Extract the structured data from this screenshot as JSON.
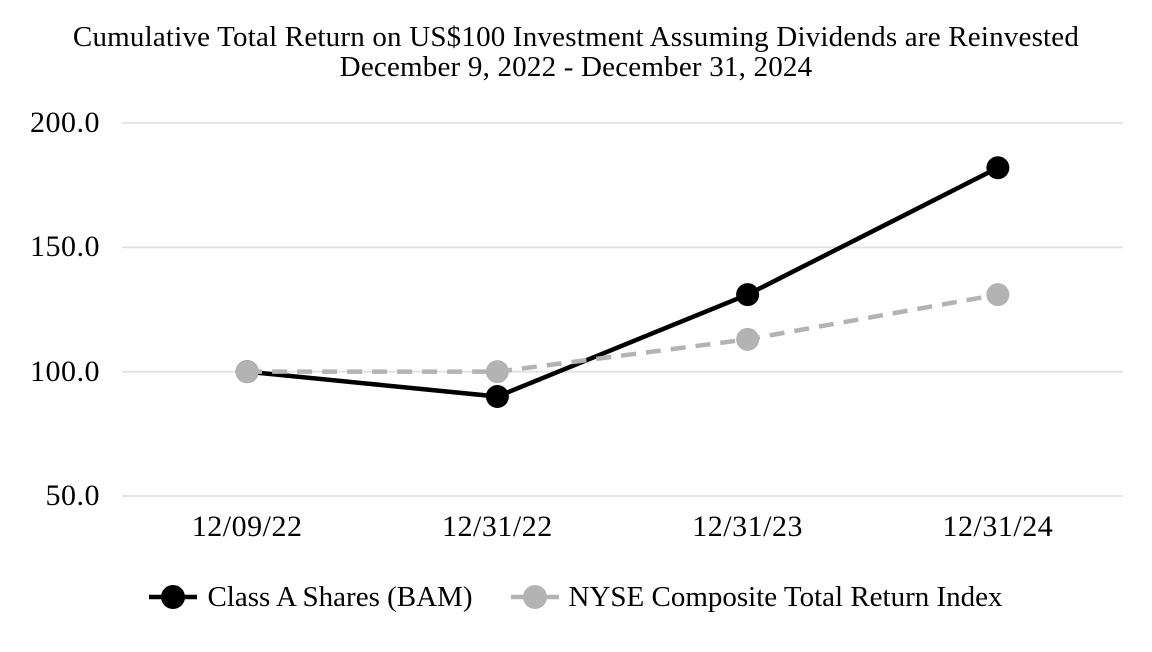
{
  "chart_data": {
    "type": "line",
    "title": "Cumulative Total Return on US$100 Investment Assuming Dividends are Reinvested",
    "subtitle": "December 9, 2022 - December 31, 2024",
    "categories": [
      "12/09/22",
      "12/31/22",
      "12/31/23",
      "12/31/24"
    ],
    "series": [
      {
        "name": "Class A Shares (BAM)",
        "values": [
          100.0,
          90.0,
          131.0,
          182.0
        ],
        "color": "#000000",
        "line_style": "solid",
        "marker": "circle"
      },
      {
        "name": "NYSE Composite Total Return Index",
        "values": [
          100.0,
          100.0,
          113.0,
          131.0
        ],
        "color": "#b3b3b3",
        "line_style": "dashed",
        "marker": "circle"
      }
    ],
    "ylim": [
      50,
      200
    ],
    "yticks": [
      {
        "value": 200,
        "label": "200.0"
      },
      {
        "value": 150,
        "label": "150.0"
      },
      {
        "value": 100,
        "label": "100.0"
      },
      {
        "value": 50,
        "label": "50.0"
      }
    ],
    "grid": true,
    "gridline_color": "#e2e2e2",
    "background_color": "#ffffff",
    "legend_position": "bottom"
  }
}
